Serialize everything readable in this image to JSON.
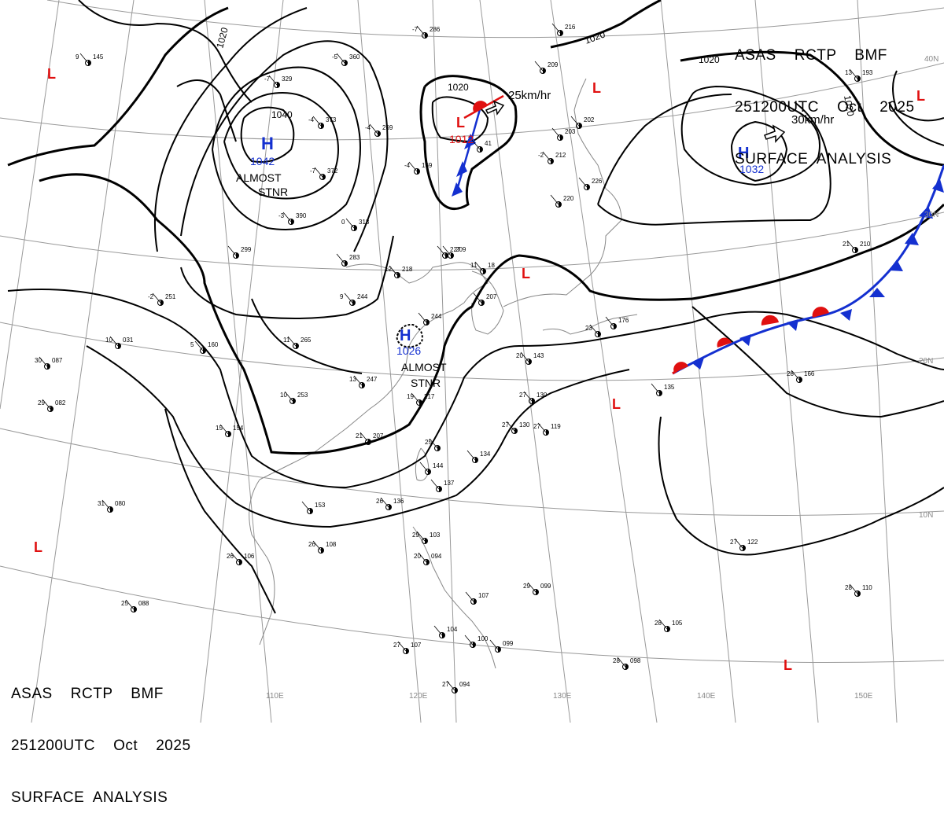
{
  "header": {
    "line1": "ASAS    RCTP    BMF",
    "line2": "251200UTC    Oct    2025",
    "line3": "SURFACE  ANALYSIS"
  },
  "colors": {
    "isobar": "#000000",
    "grid": "#999999",
    "coast": "#888888",
    "high": "#1430d0",
    "low": "#e01010",
    "warm_front": "#e01010",
    "cold_front": "#1430d0"
  },
  "grid_labels": {
    "lon": [
      "110E",
      "120E",
      "130E",
      "140E",
      "150E"
    ],
    "lat": [
      "40N",
      "30N",
      "20N",
      "10N"
    ]
  },
  "pressure_centers": [
    {
      "type": "H",
      "value": "1042",
      "note": ""
    },
    {
      "type": "H",
      "value": "1026",
      "note": ""
    },
    {
      "type": "H",
      "value": "1032",
      "note": ""
    },
    {
      "type": "L",
      "value": "1012",
      "note": ""
    },
    {
      "type": "L",
      "value": "",
      "note": ""
    }
  ],
  "motion_labels": [
    "25km/hr",
    "30km/hr"
  ],
  "stationary_labels": [
    {
      "line1": "ALMOST",
      "line2": "STNR"
    },
    {
      "line1": "ALMOST",
      "line2": "STNR"
    }
  ],
  "isobar_labels": [
    "1020",
    "1040",
    "1020",
    "1020",
    "1020",
    "1020"
  ],
  "stations": [
    {
      "t": "9",
      "p": "145"
    },
    {
      "t": "-5",
      "p": "360"
    },
    {
      "t": "-7",
      "p": "329"
    },
    {
      "t": "-4",
      "p": "373"
    },
    {
      "t": "-7",
      "p": "372"
    },
    {
      "t": "-3",
      "p": "390"
    },
    {
      "t": "0",
      "p": "313"
    },
    {
      "t": "-4",
      "p": "269"
    },
    {
      "t": "",
      "p": "299"
    },
    {
      "t": "",
      "p": "283"
    },
    {
      "t": "-4",
      "p": "169"
    },
    {
      "t": "",
      "p": "41"
    },
    {
      "t": "-7",
      "p": "286"
    },
    {
      "t": "",
      "p": "209"
    },
    {
      "t": "",
      "p": "203"
    },
    {
      "t": "",
      "p": "202"
    },
    {
      "t": "-2",
      "p": "212"
    },
    {
      "t": "",
      "p": "220"
    },
    {
      "t": "",
      "p": "226"
    },
    {
      "t": "",
      "p": "216"
    },
    {
      "t": "13",
      "p": "193"
    },
    {
      "t": "-2",
      "p": "251"
    },
    {
      "t": "10",
      "p": "031"
    },
    {
      "t": "5",
      "p": "160"
    },
    {
      "t": "11",
      "p": "265"
    },
    {
      "t": "9",
      "p": "244"
    },
    {
      "t": "12",
      "p": "218"
    },
    {
      "t": "",
      "p": "227"
    },
    {
      "t": "",
      "p": "209"
    },
    {
      "t": "11",
      "p": "18"
    },
    {
      "t": "",
      "p": "207"
    },
    {
      "t": "",
      "p": "244"
    },
    {
      "t": "30",
      "p": "087"
    },
    {
      "t": "29",
      "p": "082"
    },
    {
      "t": "10",
      "p": "253"
    },
    {
      "t": "13",
      "p": "247"
    },
    {
      "t": "19",
      "p": "217"
    },
    {
      "t": "20",
      "p": "143"
    },
    {
      "t": "23",
      "p": ""
    },
    {
      "t": "",
      "p": "176"
    },
    {
      "t": "27",
      "p": "130"
    },
    {
      "t": "27",
      "p": "119"
    },
    {
      "t": "27",
      "p": "130"
    },
    {
      "t": "21",
      "p": "207"
    },
    {
      "t": "25",
      "p": ""
    },
    {
      "t": "",
      "p": "134"
    },
    {
      "t": "",
      "p": "144"
    },
    {
      "t": "",
      "p": "137"
    },
    {
      "t": "",
      "p": "135"
    },
    {
      "t": "28",
      "p": "166"
    },
    {
      "t": "21",
      "p": "210"
    },
    {
      "t": "31",
      "p": "080"
    },
    {
      "t": "",
      "p": "153"
    },
    {
      "t": "26",
      "p": "136"
    },
    {
      "t": "26",
      "p": "106"
    },
    {
      "t": "26",
      "p": "108"
    },
    {
      "t": "29",
      "p": "103"
    },
    {
      "t": "20",
      "p": "094"
    },
    {
      "t": "29",
      "p": "099"
    },
    {
      "t": "",
      "p": "107"
    },
    {
      "t": "25",
      "p": "088"
    },
    {
      "t": "",
      "p": "104"
    },
    {
      "t": "27",
      "p": "107"
    },
    {
      "t": "",
      "p": "100"
    },
    {
      "t": "",
      "p": "099"
    },
    {
      "t": "27",
      "p": "094"
    },
    {
      "t": "28",
      "p": "098"
    },
    {
      "t": "28",
      "p": "105"
    },
    {
      "t": "28",
      "p": "110"
    },
    {
      "t": "27",
      "p": "122"
    },
    {
      "t": "15",
      "p": "154"
    }
  ]
}
